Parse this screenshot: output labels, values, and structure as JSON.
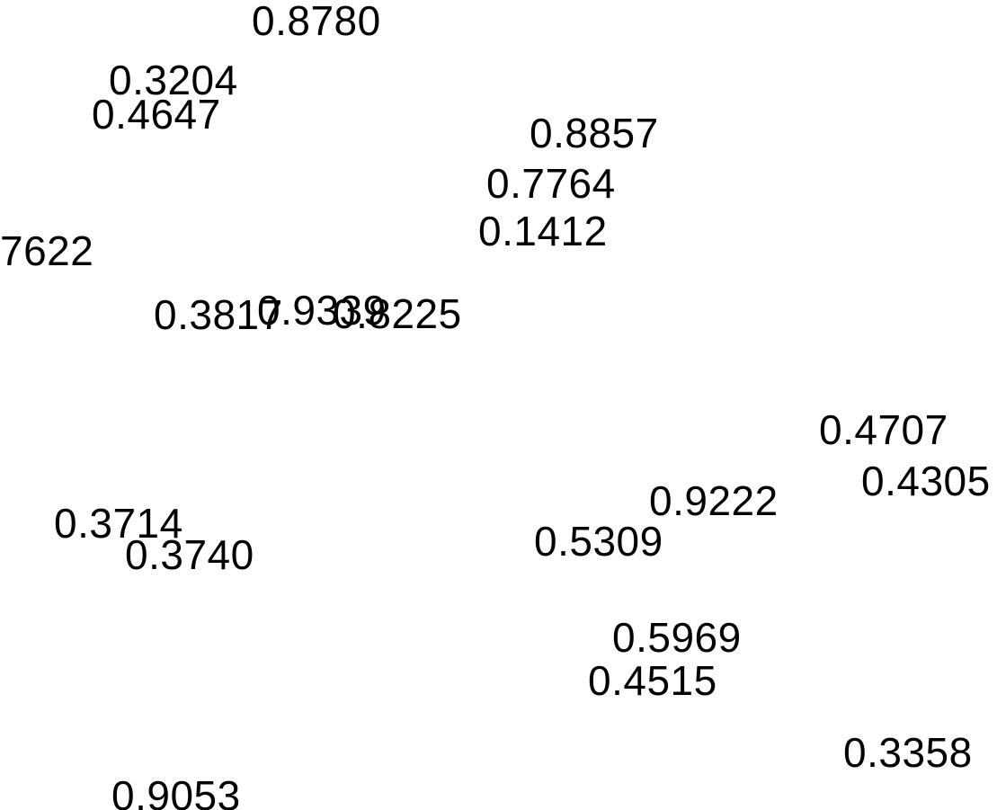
{
  "labels": [
    "0.8780",
    "0.3204",
    "0.4647",
    "0.8857",
    "0.7764",
    "0.1412",
    "7622",
    "0.3817",
    "0.9339",
    "0.8225",
    "0.4707",
    "0.4305",
    "0.9222",
    "0.3714",
    "0.5309",
    "0.3740",
    "0.5969",
    "0.4515",
    "0.3358",
    "0.9053"
  ]
}
